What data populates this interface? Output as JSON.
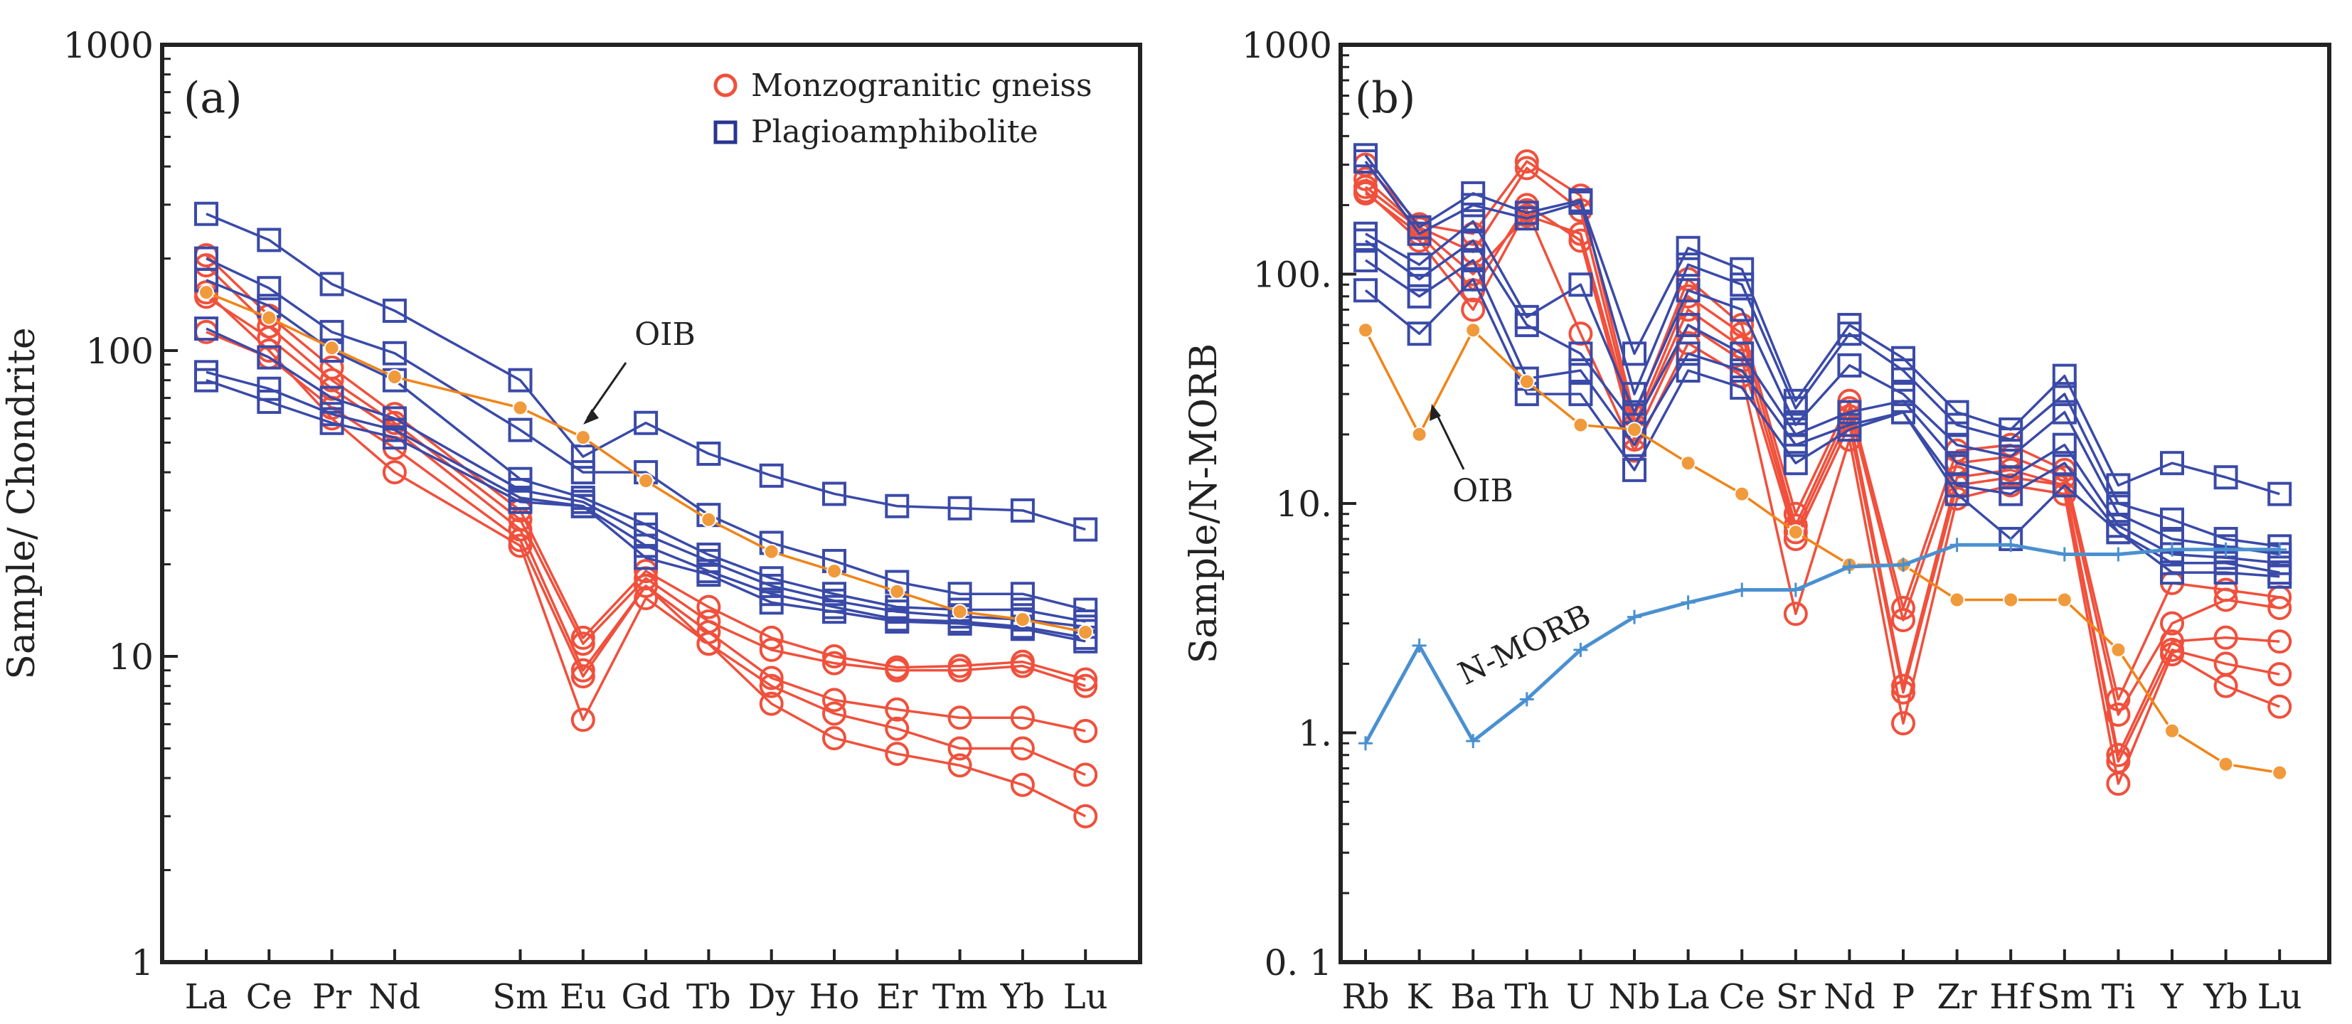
{
  "chart_data": [
    {
      "type": "line",
      "panel_label": "(a)",
      "title": "",
      "ylabel": "Sample/ Chondrite",
      "xlabel": "",
      "yscale": "log",
      "ylim": [
        1,
        1000
      ],
      "y_ticks": [
        "1",
        "10",
        "100",
        "1000"
      ],
      "categories": [
        "La",
        "Ce",
        "Pr",
        "Nd",
        "Sm",
        "Eu",
        "Gd",
        "Tb",
        "Dy",
        "Ho",
        "Er",
        "Tm",
        "Yb",
        "Lu"
      ],
      "x_positions": [
        0,
        1,
        2,
        3,
        5,
        6,
        7,
        8,
        9,
        10,
        11,
        12,
        13,
        14
      ],
      "legend": [
        {
          "label": "Monzogranitic gneiss",
          "marker": "circle",
          "color": "#f0503c"
        },
        {
          "label": "Plagioamphibolite",
          "marker": "square",
          "color": "#3a4aa8"
        }
      ],
      "annotations": [
        {
          "text": "OIB"
        }
      ],
      "series": [
        {
          "name": "Monzogranitic gneiss 1",
          "group": "Monzogranitic gneiss",
          "values": [
            205,
            130,
            88,
            62,
            30,
            11.5,
            19,
            14.5,
            11.5,
            10,
            9.2,
            9.3,
            9.6,
            8.4
          ]
        },
        {
          "name": "Monzogranitic gneiss 2",
          "group": "Monzogranitic gneiss",
          "values": [
            190,
            120,
            80,
            58,
            28,
            11,
            18,
            13,
            10.5,
            9.5,
            9,
            9,
            9.3,
            8
          ]
        },
        {
          "name": "Monzogranitic gneiss 3",
          "group": "Monzogranitic gneiss",
          "values": [
            150,
            110,
            75,
            55,
            26,
            9,
            17,
            12,
            8.5,
            7.2,
            6.7,
            6.3,
            6.3,
            5.7
          ]
        },
        {
          "name": "Monzogranitic gneiss 4",
          "group": "Monzogranitic gneiss",
          "values": [
            115,
            95,
            65,
            48,
            24,
            8.6,
            17,
            11,
            8,
            6.5,
            5.8,
            5,
            5,
            4.1
          ]
        },
        {
          "name": "Monzogranitic gneiss 5",
          "group": "Monzogranitic gneiss",
          "values": [
            155,
            100,
            60,
            40,
            23,
            6.2,
            15.5,
            11,
            7,
            5.4,
            4.8,
            4.4,
            3.8,
            3
          ]
        },
        {
          "name": "Plagioamphibolite 1",
          "group": "Plagioamphibolite",
          "values": [
            280,
            230,
            165,
            135,
            80,
            45,
            58,
            46,
            39,
            34,
            31,
            30.5,
            30,
            26
          ]
        },
        {
          "name": "Plagioamphibolite 2",
          "group": "Plagioamphibolite",
          "values": [
            200,
            160,
            115,
            98,
            55,
            40,
            40,
            29,
            23.5,
            20.5,
            17.5,
            16,
            16,
            14.2
          ]
        },
        {
          "name": "Plagioamphibolite 3",
          "group": "Plagioamphibolite",
          "values": [
            170,
            140,
            100,
            80,
            38,
            33,
            27,
            21.5,
            18,
            16,
            14.5,
            14.2,
            14.2,
            13
          ]
        },
        {
          "name": "Plagioamphibolite 4",
          "group": "Plagioamphibolite",
          "values": [
            118,
            95,
            70,
            60,
            35,
            32,
            25,
            20.5,
            17,
            15.2,
            14,
            13.5,
            13.2,
            12.5
          ]
        },
        {
          "name": "Plagioamphibolite 5",
          "group": "Plagioamphibolite",
          "values": [
            85,
            75,
            62,
            55,
            33,
            31,
            23,
            19,
            16,
            14.5,
            13.2,
            13,
            12.5,
            11.5
          ]
        },
        {
          "name": "Plagioamphibolite 6",
          "group": "Plagioamphibolite",
          "values": [
            80,
            68,
            58,
            52,
            32,
            31,
            21,
            18.5,
            15,
            14,
            13,
            12.8,
            12.3,
            11.2
          ]
        },
        {
          "name": "OIB",
          "group": "OIB",
          "values": [
            155,
            128,
            102,
            82,
            65,
            52,
            37.5,
            28,
            22,
            19,
            16.3,
            14,
            13.2,
            12
          ]
        }
      ]
    },
    {
      "type": "line",
      "panel_label": "(b)",
      "title": "",
      "ylabel": "Sample/N-MORB",
      "xlabel": "",
      "yscale": "log",
      "ylim": [
        0.1,
        1000
      ],
      "y_ticks": [
        "0. 1",
        "1.",
        "10.",
        "100.",
        "1000"
      ],
      "categories": [
        "Rb",
        "K",
        "Ba",
        "Th",
        "U",
        "Nb",
        "La",
        "Ce",
        "Sr",
        "Nd",
        "P",
        "Zr",
        "Hf",
        "Sm",
        "Ti",
        "Y",
        "Yb",
        "Lu"
      ],
      "x_positions": [
        0,
        1,
        2,
        3,
        4,
        5,
        6,
        7,
        8,
        9,
        10,
        11,
        12,
        13,
        14,
        15,
        16,
        17
      ],
      "annotations": [
        {
          "text": "OIB"
        },
        {
          "text": "N-MORB"
        }
      ],
      "series": [
        {
          "name": "Monzogranitic gneiss 1",
          "group": "Monzogranitic gneiss",
          "values": [
            300,
            165,
            150,
            310,
            220,
            24,
            95,
            60,
            9,
            28,
            3.5,
            17,
            18,
            14,
            1.4,
            4.5,
            4.2,
            3.9
          ]
        },
        {
          "name": "Monzogranitic gneiss 2",
          "group": "Monzogranitic gneiss",
          "values": [
            260,
            160,
            125,
            290,
            190,
            22,
            80,
            55,
            8,
            26,
            3.1,
            15,
            16,
            13,
            1.2,
            3,
            3.8,
            3.5
          ]
        },
        {
          "name": "Monzogranitic gneiss 3",
          "group": "Monzogranitic gneiss",
          "values": [
            240,
            158,
            100,
            180,
            150,
            21,
            70,
            48,
            7.5,
            24,
            1.6,
            13,
            14,
            12,
            0.8,
            2.5,
            2.6,
            2.5
          ]
        },
        {
          "name": "Monzogranitic gneiss 4",
          "group": "Monzogranitic gneiss",
          "values": [
            225,
            150,
            85,
            200,
            140,
            19,
            60,
            42,
            7,
            22,
            1.5,
            12,
            13,
            12,
            0.75,
            2.3,
            2,
            1.8
          ]
        },
        {
          "name": "Monzogranitic gneiss 5",
          "group": "Monzogranitic gneiss",
          "values": [
            230,
            140,
            70,
            190,
            55,
            17,
            50,
            36,
            3.3,
            19,
            1.1,
            10.5,
            12,
            11,
            0.6,
            2.2,
            1.6,
            1.3
          ]
        },
        {
          "name": "Plagioamphibolite 1",
          "group": "Plagioamphibolite",
          "values": [
            330,
            160,
            225,
            185,
            210,
            45,
            130,
            105,
            28,
            60,
            43,
            25,
            21,
            36,
            12,
            15,
            13,
            11
          ]
        },
        {
          "name": "Plagioamphibolite 2",
          "group": "Plagioamphibolite",
          "values": [
            310,
            150,
            200,
            175,
            205,
            30,
            110,
            90,
            26,
            55,
            38,
            22,
            19,
            30,
            10,
            8.5,
            7,
            6.5
          ]
        },
        {
          "name": "Plagioamphibolite 3",
          "group": "Plagioamphibolite",
          "values": [
            150,
            110,
            170,
            65,
            90,
            25,
            85,
            70,
            22,
            40,
            30,
            18,
            16,
            25,
            9,
            7,
            6.5,
            6
          ]
        },
        {
          "name": "Plagioamphibolite 4",
          "group": "Plagioamphibolite",
          "values": [
            140,
            95,
            140,
            60,
            45,
            22,
            60,
            45,
            20,
            25,
            28,
            15,
            13,
            18,
            8,
            6,
            5.8,
            5.5
          ]
        },
        {
          "name": "Plagioamphibolite 5",
          "group": "Plagioamphibolite",
          "values": [
            115,
            80,
            115,
            35,
            38,
            18,
            45,
            38,
            18,
            22,
            25,
            12,
            11,
            15,
            7.5,
            5.5,
            5.5,
            5
          ]
        },
        {
          "name": "Plagioamphibolite 6",
          "group": "Plagioamphibolite",
          "values": [
            85,
            55,
            95,
            30,
            30,
            14,
            38,
            32,
            15,
            21,
            25,
            11,
            7,
            12,
            7.5,
            5,
            5,
            4.8
          ]
        },
        {
          "name": "OIB",
          "group": "OIB",
          "values": [
            57,
            20,
            57,
            34,
            22,
            21,
            15,
            11,
            7.5,
            5.4,
            5.4,
            3.8,
            3.8,
            3.8,
            2.3,
            1.02,
            0.73,
            0.67
          ]
        },
        {
          "name": "N-MORB",
          "group": "N-MORB",
          "values": [
            0.9,
            2.4,
            0.92,
            1.4,
            2.3,
            3.2,
            3.7,
            4.2,
            4.2,
            5.3,
            5.4,
            6.6,
            6.6,
            6,
            6,
            6.3,
            6.3,
            6.3
          ]
        }
      ]
    }
  ],
  "colors": {
    "monzogranitic": "#f0503c",
    "plagioamphibolite": "#3a4aa8",
    "oib": "#f08418",
    "oib_marker": "#f09a3c",
    "nmorb": "#4a90d0",
    "axis": "#222222"
  }
}
